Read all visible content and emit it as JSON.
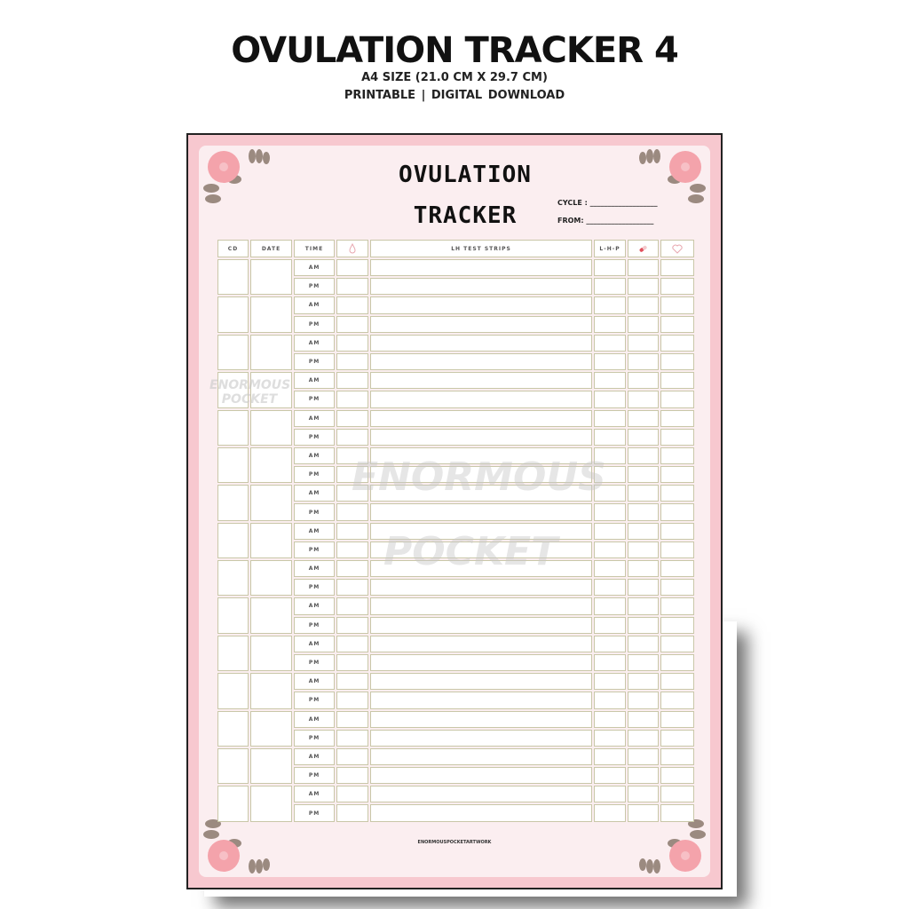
{
  "header": {
    "title": "OVULATION TRACKER 4",
    "size": "A4 SIZE  (21.0 CM X 29.7 CM)",
    "formats": "PRINTABLE    |   DIGITAL DOWNLOAD"
  },
  "sheet": {
    "title_line1": "OVULATION",
    "title_line2": "TRACKER",
    "cycle_label": "CYCLE : ___________________",
    "from_label": "FROM: ___________________",
    "columns": [
      "CD",
      "DATE",
      "TIME",
      "",
      "LH TEST STRIPS",
      "L-H-P",
      "",
      ""
    ],
    "column_icons": {
      "col4": "water-drop-icon",
      "col7": "pill-icon",
      "col8": "heart-icon"
    },
    "time_values": [
      "AM",
      "PM"
    ],
    "days": 15,
    "footer": "ENORMOUSPOCKETARTWORK",
    "watermark": [
      "ENORMOUS",
      "POCKET"
    ]
  },
  "colors": {
    "sheet": "#f7c8cf",
    "panel": "#fbeef0",
    "cell_border": "#c9c7a8",
    "flower": "#f4a3ab",
    "leaf": "#9b8a80"
  }
}
